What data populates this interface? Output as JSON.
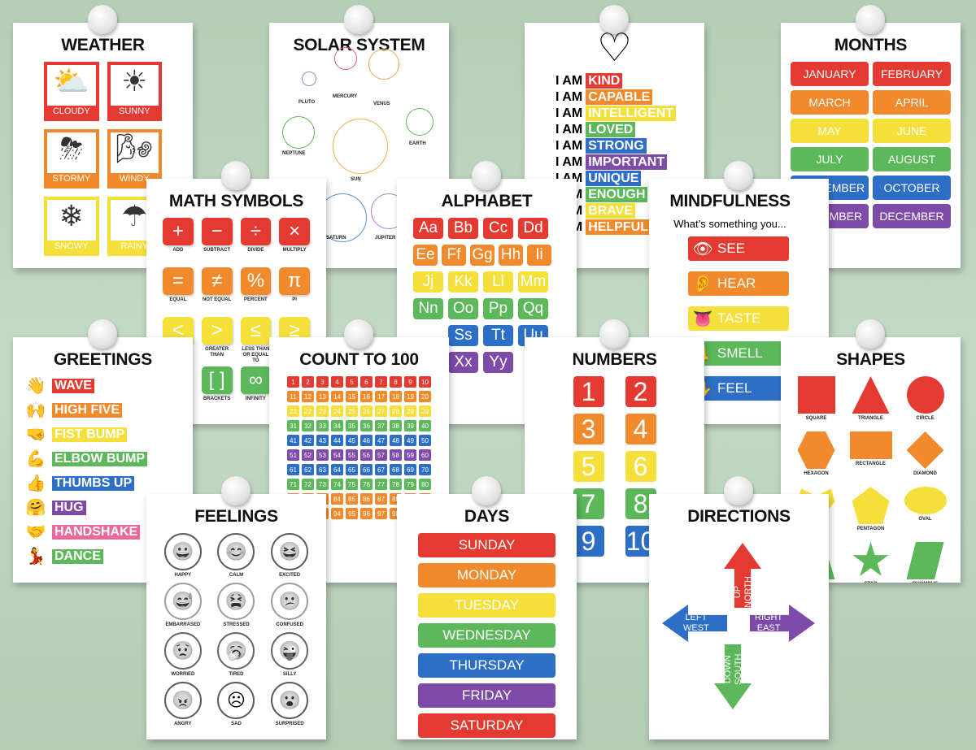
{
  "colors": {
    "red": "#e33a32",
    "orange": "#f08a2c",
    "yellow": "#f5df3a",
    "green": "#5cb85a",
    "blue": "#2d6fc6",
    "purple": "#7e4ba8",
    "pink": "#e8699a"
  },
  "posters": {
    "weather": {
      "title": "WEATHER",
      "items": [
        {
          "label": "CLOUDY",
          "icon": "cloud-sun-icon",
          "glyph": "⛅",
          "color": "red"
        },
        {
          "label": "SUNNY",
          "icon": "sun-icon",
          "glyph": "☀",
          "color": "red"
        },
        {
          "label": "STORMY",
          "icon": "storm-icon",
          "glyph": "⛈",
          "color": "orange"
        },
        {
          "label": "WINDY",
          "icon": "wind-icon",
          "glyph": "🌬",
          "color": "orange"
        },
        {
          "label": "SNOWY",
          "icon": "snow-icon",
          "glyph": "❄",
          "color": "yellow"
        },
        {
          "label": "RAINY",
          "icon": "rain-icon",
          "glyph": "☂",
          "color": "yellow"
        }
      ]
    },
    "solar": {
      "title": "SOLAR SYSTEM",
      "planets": [
        "PLUTO",
        "MERCURY",
        "VENUS",
        "EARTH",
        "NEPTUNE",
        "SUN",
        "SATURN",
        "JUPITER"
      ]
    },
    "iam": {
      "prefix": "I AM",
      "icon": "heart-icon",
      "words": [
        {
          "w": "KIND",
          "c": "red"
        },
        {
          "w": "CAPABLE",
          "c": "orange"
        },
        {
          "w": "INTELLIGENT",
          "c": "yellow"
        },
        {
          "w": "LOVED",
          "c": "green"
        },
        {
          "w": "STRONG",
          "c": "blue"
        },
        {
          "w": "IMPORTANT",
          "c": "purple"
        },
        {
          "w": "UNIQUE",
          "c": "blue"
        },
        {
          "w": "ENOUGH",
          "c": "green"
        },
        {
          "w": "BRAVE",
          "c": "yellow"
        },
        {
          "w": "HELPFUL",
          "c": "orange"
        }
      ]
    },
    "months": {
      "title": "MONTHS",
      "items": [
        "JANUARY",
        "FEBRUARY",
        "MARCH",
        "APRIL",
        "MAY",
        "JUNE",
        "JULY",
        "AUGUST",
        "SEPTEMBER",
        "OCTOBER",
        "NOVEMBER",
        "DECEMBER"
      ],
      "row_colors": [
        "red",
        "orange",
        "yellow",
        "green",
        "blue",
        "purple"
      ]
    },
    "math": {
      "title": "MATH SYMBOLS",
      "rows": [
        {
          "c": "red",
          "items": [
            [
              "+",
              "ADD"
            ],
            [
              "−",
              "SUBTRACT"
            ],
            [
              "÷",
              "DIVIDE"
            ],
            [
              "×",
              "MULTIPLY"
            ]
          ]
        },
        {
          "c": "orange",
          "items": [
            [
              "=",
              "EQUAL"
            ],
            [
              "≠",
              "NOT EQUAL"
            ],
            [
              "%",
              "PERCENT"
            ],
            [
              "π",
              "PI"
            ]
          ]
        },
        {
          "c": "yellow",
          "items": [
            [
              "<",
              ""
            ],
            [
              ">",
              "GREATER THAN"
            ],
            [
              "≤",
              "LESS THAN OR EQUAL TO"
            ],
            [
              "≥",
              ""
            ]
          ]
        },
        {
          "c": "green",
          "items": [
            [
              "",
              ""
            ],
            [
              "[ ]",
              "BRACKETS"
            ],
            [
              "∞",
              "INFINITY"
            ],
            [
              "",
              ""
            ]
          ]
        }
      ]
    },
    "alphabet": {
      "title": "ALPHABET",
      "rows": [
        {
          "c": "red",
          "items": [
            "Aa",
            "Bb",
            "Cc",
            "Dd"
          ]
        },
        {
          "c": "orange",
          "items": [
            "Ee",
            "Ff",
            "Gg",
            "Hh",
            "Ii"
          ]
        },
        {
          "c": "yellow",
          "items": [
            "Jj",
            "Kk",
            "Ll",
            "Mm"
          ]
        },
        {
          "c": "green",
          "items": [
            "Nn",
            "Oo",
            "Pp",
            "Qq"
          ]
        },
        {
          "c": "blue",
          "items": [
            "",
            "Ss",
            "Tt",
            "Uu"
          ]
        },
        {
          "c": "purple",
          "items": [
            "",
            "Xx",
            "Yy"
          ]
        }
      ]
    },
    "mindfulness": {
      "title": "MINDFULNESS",
      "subtitle": "What’s something you...",
      "items": [
        {
          "w": "SEE",
          "c": "red",
          "icon": "eye-icon",
          "g": "👁"
        },
        {
          "w": "HEAR",
          "c": "orange",
          "icon": "ear-icon",
          "g": "👂"
        },
        {
          "w": "TASTE",
          "c": "yellow",
          "icon": "tongue-icon",
          "g": "👅"
        },
        {
          "w": "SMELL",
          "c": "green",
          "icon": "nose-icon",
          "g": "👃"
        },
        {
          "w": "FEEL",
          "c": "blue",
          "icon": "hand-icon",
          "g": "✋"
        }
      ]
    },
    "greetings": {
      "title": "GREETINGS",
      "items": [
        {
          "w": "WAVE",
          "c": "red",
          "icon": "wave-icon",
          "g": "👋"
        },
        {
          "w": "HIGH FIVE",
          "c": "orange",
          "icon": "high-five-icon",
          "g": "🙌"
        },
        {
          "w": "FIST BUMP",
          "c": "yellow",
          "icon": "fist-bump-icon",
          "g": "🤜"
        },
        {
          "w": "ELBOW BUMP",
          "c": "green",
          "icon": "elbow-bump-icon",
          "g": "💪"
        },
        {
          "w": "THUMBS UP",
          "c": "blue",
          "icon": "thumbs-up-icon",
          "g": "👍"
        },
        {
          "w": "HUG",
          "c": "purple",
          "icon": "hug-icon",
          "g": "🤗"
        },
        {
          "w": "HANDSHAKE",
          "c": "pink",
          "icon": "handshake-icon",
          "g": "🤝"
        },
        {
          "w": "DANCE",
          "c": "green",
          "icon": "dance-icon",
          "g": "💃"
        }
      ]
    },
    "count": {
      "title": "COUNT TO 100",
      "max": 100,
      "row_colors": [
        "red",
        "orange",
        "yellow",
        "green",
        "blue",
        "purple",
        "blue",
        "green",
        "orange",
        "orange"
      ]
    },
    "numbers": {
      "title": "NUMBERS",
      "items": [
        "1",
        "2",
        "3",
        "4",
        "5",
        "6",
        "7",
        "8",
        "9",
        "10"
      ],
      "row_colors": [
        "red",
        "orange",
        "yellow",
        "green",
        "blue"
      ]
    },
    "shapes": {
      "title": "SHAPES",
      "items": [
        {
          "s": "square",
          "l": "SQUARE",
          "c": "red"
        },
        {
          "s": "triangle",
          "l": "TRIANGLE",
          "c": "red"
        },
        {
          "s": "circle",
          "l": "CIRCLE",
          "c": "red"
        },
        {
          "s": "hexagon",
          "l": "HEXAGON",
          "c": "orange"
        },
        {
          "s": "rectangle",
          "l": "RECTANGLE",
          "c": "orange"
        },
        {
          "s": "diamond",
          "l": "DIAMOND",
          "c": "orange"
        },
        {
          "s": "heart",
          "l": "",
          "c": "yellow"
        },
        {
          "s": "pentagon",
          "l": "PENTAGON",
          "c": "yellow"
        },
        {
          "s": "oval",
          "l": "OVAL",
          "c": "yellow"
        },
        {
          "s": "trapezoid",
          "l": "",
          "c": "green"
        },
        {
          "s": "star",
          "l": "STAR",
          "c": "green"
        },
        {
          "s": "rhombus",
          "l": "RHOMBUS",
          "c": "green"
        }
      ]
    },
    "feelings": {
      "title": "FEELINGS",
      "items": [
        {
          "l": "HAPPY",
          "c": "red",
          "g": "😀"
        },
        {
          "l": "CALM",
          "c": "red",
          "g": "😊"
        },
        {
          "l": "EXCITED",
          "c": "red",
          "g": "😆"
        },
        {
          "l": "EMBARRASED",
          "c": "green",
          "g": "😅"
        },
        {
          "l": "STRESSED",
          "c": "green",
          "g": "😫"
        },
        {
          "l": "CONFUSED",
          "c": "green",
          "g": "😕"
        },
        {
          "l": "WORRIED",
          "c": "blue",
          "g": "😟"
        },
        {
          "l": "TIRED",
          "c": "blue",
          "g": "🥱"
        },
        {
          "l": "SILLY",
          "c": "blue",
          "g": "😜"
        },
        {
          "l": "ANGRY",
          "c": "purple",
          "g": "😠"
        },
        {
          "l": "SAD",
          "c": "purple",
          "g": "☹"
        },
        {
          "l": "SURPRISED",
          "c": "purple",
          "g": "😮"
        }
      ]
    },
    "days": {
      "title": "DAYS",
      "items": [
        {
          "w": "SUNDAY",
          "c": "red"
        },
        {
          "w": "MONDAY",
          "c": "orange"
        },
        {
          "w": "TUESDAY",
          "c": "yellow"
        },
        {
          "w": "WEDNESDAY",
          "c": "green"
        },
        {
          "w": "THURSDAY",
          "c": "blue"
        },
        {
          "w": "FRIDAY",
          "c": "purple"
        },
        {
          "w": "SATURDAY",
          "c": "red"
        }
      ]
    },
    "directions": {
      "title": "DIRECTIONS",
      "up": {
        "l": "UP\nNORTH",
        "c": "red"
      },
      "left": {
        "l": "LEFT\nWEST",
        "c": "blue"
      },
      "right": {
        "l": "RIGHT\nEAST",
        "c": "purple"
      },
      "down": {
        "l": "DOWN\nSOUTH",
        "c": "green"
      }
    }
  }
}
